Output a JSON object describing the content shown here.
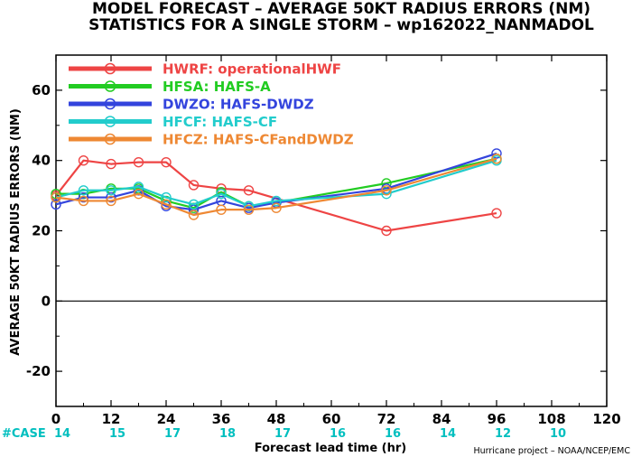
{
  "title_line1": "MODEL FORECAST – AVERAGE 50KT RADIUS ERRORS (NM)",
  "title_line2": "STATISTICS FOR A SINGLE STORM – wp162022_NANMADOL",
  "credit": "Hurricane project – NOAA/NCEP/EMC",
  "case_label": "#CASE",
  "colors": {
    "case_text": "#00bfbf",
    "axis": "#000000"
  },
  "chart_data": {
    "type": "line",
    "xlabel": "Forecast lead time (hr)",
    "ylabel": "AVERAGE 50KT RADIUS ERRORS (NM)",
    "xlim": [
      0,
      120
    ],
    "ylim": [
      -30,
      70
    ],
    "xticks": [
      0,
      12,
      24,
      36,
      48,
      60,
      72,
      84,
      96,
      108,
      120
    ],
    "yticks": [
      -20,
      0,
      20,
      40,
      60
    ],
    "zero_line": true,
    "grid": false,
    "legend_position": "top-left",
    "cases": [
      {
        "x": 0,
        "count": 14
      },
      {
        "x": 12,
        "count": 15
      },
      {
        "x": 24,
        "count": 17
      },
      {
        "x": 36,
        "count": 18
      },
      {
        "x": 48,
        "count": 17
      },
      {
        "x": 60,
        "count": 16
      },
      {
        "x": 72,
        "count": 16
      },
      {
        "x": 84,
        "count": 14
      },
      {
        "x": 96,
        "count": 12
      },
      {
        "x": 108,
        "count": 10
      }
    ],
    "series": [
      {
        "name": "HWRF: operationalHWF",
        "color": "#ee4444",
        "x": [
          0,
          6,
          12,
          18,
          24,
          30,
          36,
          42,
          72,
          96
        ],
        "y": [
          30,
          40,
          39,
          39.5,
          39.5,
          33,
          32,
          31.5,
          20,
          25
        ]
      },
      {
        "name": "HFSA: HAFS-A",
        "color": "#22cc22",
        "x": [
          0,
          6,
          12,
          18,
          24,
          30,
          36,
          42,
          48,
          72,
          96
        ],
        "y": [
          30.5,
          30.5,
          32,
          32,
          28.5,
          26.5,
          31,
          27,
          28,
          33.5,
          40.5
        ]
      },
      {
        "name": "DWZO: HAFS-DWDZ",
        "color": "#3344dd",
        "x": [
          0,
          6,
          12,
          18,
          24,
          30,
          36,
          42,
          48,
          72,
          96
        ],
        "y": [
          27.5,
          29.5,
          29.5,
          31.5,
          27,
          26,
          28.5,
          26.5,
          28,
          32,
          42
        ]
      },
      {
        "name": "HFCF: HAFS-CF",
        "color": "#22cccc",
        "x": [
          0,
          6,
          12,
          18,
          24,
          30,
          36,
          42,
          48,
          72,
          96
        ],
        "y": [
          29.5,
          31.5,
          31.5,
          32.5,
          29.5,
          27.5,
          30.5,
          27,
          28.5,
          30.5,
          40
        ]
      },
      {
        "name": "HFCZ: HAFS-CFandDWDZ",
        "color": "#ee8833",
        "x": [
          0,
          6,
          12,
          18,
          24,
          30,
          36,
          42,
          48,
          72,
          96
        ],
        "y": [
          29.5,
          28.5,
          28.5,
          30.5,
          27.5,
          24.5,
          26,
          26,
          26.5,
          31.5,
          40.5
        ]
      }
    ]
  }
}
